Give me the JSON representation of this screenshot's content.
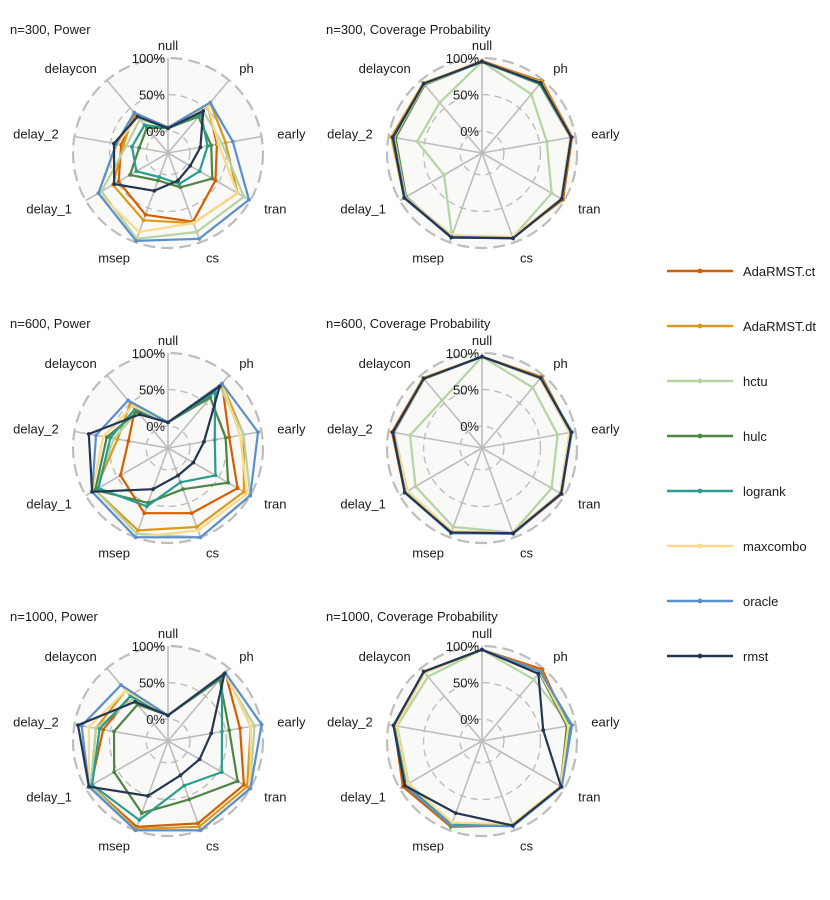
{
  "chart_data": [
    {
      "type": "radar",
      "title": "n=300, Power",
      "axes": [
        "null",
        "ph",
        "early",
        "tran",
        "cs",
        "msep",
        "delay_1",
        "delay_2",
        "delaycon"
      ],
      "ticks": [
        "100%",
        "50%",
        "0%"
      ],
      "rlim": [
        -0.3,
        1.0
      ],
      "series": [
        {
          "name": "AdaRMST.ct",
          "values": [
            0.04,
            0.55,
            0.38,
            0.45,
            0.7,
            0.6,
            0.48,
            0.35,
            0.4
          ]
        },
        {
          "name": "AdaRMST.dt",
          "values": [
            0.05,
            0.6,
            0.5,
            0.8,
            0.72,
            0.68,
            0.57,
            0.32,
            0.42
          ]
        },
        {
          "name": "hctu",
          "values": [
            0.05,
            0.45,
            0.45,
            0.9,
            0.85,
            0.95,
            0.75,
            0.28,
            0.3
          ]
        },
        {
          "name": "hulc",
          "values": [
            0.04,
            0.35,
            0.3,
            0.4,
            0.2,
            0.1,
            0.3,
            0.1,
            0.15
          ]
        },
        {
          "name": "logrank",
          "values": [
            0.04,
            0.4,
            0.25,
            0.2,
            0.15,
            0.05,
            0.2,
            0.2,
            0.2
          ]
        },
        {
          "name": "maxcombo",
          "values": [
            0.05,
            0.55,
            0.4,
            0.8,
            0.72,
            0.85,
            0.8,
            0.4,
            0.35
          ]
        },
        {
          "name": "oracle",
          "values": [
            0.05,
            0.6,
            0.6,
            0.98,
            0.95,
            0.98,
            0.8,
            0.42,
            0.42
          ]
        },
        {
          "name": "rmst",
          "values": [
            0.04,
            0.45,
            0.15,
            0.05,
            0.1,
            0.25,
            0.55,
            0.45,
            0.35
          ]
        }
      ]
    },
    {
      "type": "radar",
      "title": "n=300, Coverage Probability",
      "axes": [
        "null",
        "ph",
        "early",
        "tran",
        "cs",
        "msep",
        "delay_1",
        "delay_2",
        "delaycon"
      ],
      "ticks": [
        "100%",
        "50%",
        "0%"
      ],
      "rlim": [
        -0.3,
        1.0
      ],
      "series": [
        {
          "name": "AdaRMST.ct",
          "values": [
            0.96,
            0.98,
            0.95,
            0.98,
            0.93,
            0.9,
            0.92,
            0.95,
            0.94
          ]
        },
        {
          "name": "AdaRMST.dt",
          "values": [
            0.95,
            0.97,
            0.94,
            0.97,
            0.94,
            0.91,
            0.93,
            0.96,
            0.95
          ]
        },
        {
          "name": "hctu",
          "values": [
            0.95,
            0.75,
            0.6,
            0.8,
            0.93,
            0.9,
            0.3,
            0.6,
            0.6
          ]
        },
        {
          "name": "hulc",
          "values": [
            0.95,
            0.93,
            0.93,
            0.95,
            0.93,
            0.92,
            0.9,
            0.9,
            0.92
          ]
        },
        {
          "name": "logrank",
          "values": [
            0.95,
            0.94,
            0.94,
            0.96,
            0.94,
            0.93,
            0.92,
            0.93,
            0.93
          ]
        },
        {
          "name": "maxcombo",
          "values": [
            0.95,
            0.95,
            0.93,
            0.95,
            0.92,
            0.9,
            0.91,
            0.92,
            0.93
          ]
        },
        {
          "name": "oracle",
          "values": [
            0.95,
            0.95,
            0.94,
            0.96,
            0.94,
            0.92,
            0.92,
            0.93,
            0.94
          ]
        },
        {
          "name": "rmst",
          "values": [
            0.95,
            0.95,
            0.94,
            0.96,
            0.94,
            0.93,
            0.93,
            0.94,
            0.94
          ]
        }
      ]
    },
    {
      "type": "radar",
      "title": "n=600, Power",
      "axes": [
        "null",
        "ph",
        "early",
        "tran",
        "cs",
        "msep",
        "delay_1",
        "delay_2",
        "delaycon"
      ],
      "ticks": [
        "100%",
        "50%",
        "0%"
      ],
      "rlim": [
        -0.3,
        1.0
      ],
      "series": [
        {
          "name": "AdaRMST.ct",
          "values": [
            0.05,
            0.85,
            0.55,
            0.8,
            0.65,
            0.65,
            0.45,
            0.25,
            0.4
          ]
        },
        {
          "name": "AdaRMST.dt",
          "values": [
            0.05,
            0.85,
            0.75,
            0.9,
            0.85,
            0.9,
            0.85,
            0.4,
            0.5
          ]
        },
        {
          "name": "hctu",
          "values": [
            0.05,
            0.8,
            0.75,
            1.0,
            1.0,
            0.95,
            0.85,
            0.45,
            0.35
          ]
        },
        {
          "name": "hulc",
          "values": [
            0.05,
            0.6,
            0.5,
            0.65,
            0.3,
            0.5,
            0.85,
            0.55,
            0.35
          ]
        },
        {
          "name": "logrank",
          "values": [
            0.05,
            0.7,
            0.35,
            0.45,
            0.2,
            0.55,
            0.8,
            0.5,
            0.4
          ]
        },
        {
          "name": "maxcombo",
          "values": [
            0.05,
            0.85,
            0.7,
            0.95,
            0.9,
            1.0,
            0.9,
            0.6,
            0.45
          ]
        },
        {
          "name": "oracle",
          "values": [
            0.05,
            0.85,
            0.95,
            1.0,
            1.0,
            1.0,
            0.9,
            0.7,
            0.55
          ]
        },
        {
          "name": "rmst",
          "values": [
            0.05,
            0.8,
            0.2,
            0.1,
            0.1,
            0.3,
            0.9,
            0.8,
            0.3
          ]
        }
      ]
    },
    {
      "type": "radar",
      "title": "n=600, Coverage Probability",
      "axes": [
        "null",
        "ph",
        "early",
        "tran",
        "cs",
        "msep",
        "delay_1",
        "delay_2",
        "delaycon"
      ],
      "ticks": [
        "100%",
        "50%",
        "0%"
      ],
      "rlim": [
        -0.3,
        1.0
      ],
      "series": [
        {
          "name": "AdaRMST.ct",
          "values": [
            0.95,
            0.97,
            0.94,
            0.96,
            0.95,
            0.93,
            0.92,
            0.95,
            0.95
          ]
        },
        {
          "name": "AdaRMST.dt",
          "values": [
            0.95,
            0.96,
            0.93,
            0.95,
            0.94,
            0.92,
            0.9,
            0.94,
            0.95
          ]
        },
        {
          "name": "hctu",
          "values": [
            0.95,
            0.78,
            0.75,
            0.8,
            0.93,
            0.85,
            0.75,
            0.7,
            0.55
          ]
        },
        {
          "name": "hulc",
          "values": [
            0.95,
            0.94,
            0.92,
            0.94,
            0.93,
            0.92,
            0.88,
            0.92,
            0.93
          ]
        },
        {
          "name": "logrank",
          "values": [
            0.95,
            0.94,
            0.94,
            0.95,
            0.94,
            0.94,
            0.9,
            0.93,
            0.94
          ]
        },
        {
          "name": "maxcombo",
          "values": [
            0.95,
            0.94,
            0.92,
            0.94,
            0.93,
            0.91,
            0.88,
            0.92,
            0.93
          ]
        },
        {
          "name": "oracle",
          "values": [
            0.95,
            0.95,
            0.95,
            0.95,
            0.95,
            0.94,
            0.92,
            0.93,
            0.94
          ]
        },
        {
          "name": "rmst",
          "values": [
            0.95,
            0.95,
            0.94,
            0.95,
            0.94,
            0.93,
            0.92,
            0.94,
            0.94
          ]
        }
      ]
    },
    {
      "type": "radar",
      "title": "n=1000, Power",
      "axes": [
        "null",
        "ph",
        "early",
        "tran",
        "cs",
        "msep",
        "delay_1",
        "delay_2",
        "delaycon"
      ],
      "ticks": [
        "100%",
        "50%",
        "0%"
      ],
      "rlim": [
        -0.3,
        1.0
      ],
      "series": [
        {
          "name": "AdaRMST.ct",
          "values": [
            0.05,
            0.92,
            0.7,
            0.9,
            0.9,
            0.95,
            0.92,
            0.6,
            0.5
          ]
        },
        {
          "name": "AdaRMST.dt",
          "values": [
            0.05,
            0.92,
            0.85,
            0.95,
            0.95,
            0.98,
            0.92,
            0.7,
            0.6
          ]
        },
        {
          "name": "hctu",
          "values": [
            0.05,
            0.9,
            0.9,
            1.0,
            1.0,
            1.0,
            0.92,
            0.7,
            0.45
          ]
        },
        {
          "name": "hulc",
          "values": [
            0.05,
            0.8,
            0.55,
            0.8,
            0.55,
            0.75,
            0.55,
            0.45,
            0.35
          ]
        },
        {
          "name": "logrank",
          "values": [
            0.05,
            0.85,
            0.45,
            0.55,
            0.35,
            0.85,
            0.9,
            0.65,
            0.5
          ]
        },
        {
          "name": "maxcombo",
          "values": [
            0.05,
            0.92,
            0.85,
            1.0,
            1.0,
            1.0,
            0.95,
            0.8,
            0.6
          ]
        },
        {
          "name": "oracle",
          "values": [
            0.05,
            0.92,
            1.0,
            1.0,
            1.0,
            1.0,
            0.95,
            0.9,
            0.7
          ]
        },
        {
          "name": "rmst",
          "values": [
            0.05,
            0.9,
            0.3,
            0.2,
            0.2,
            0.5,
            0.95,
            0.95,
            0.4
          ]
        }
      ]
    },
    {
      "type": "radar",
      "title": "n=1000, Coverage Probability",
      "axes": [
        "null",
        "ph",
        "early",
        "tran",
        "cs",
        "msep",
        "delay_1",
        "delay_2",
        "delaycon"
      ],
      "ticks": [
        "100%",
        "50%",
        "0%"
      ],
      "rlim": [
        -0.3,
        1.0
      ],
      "series": [
        {
          "name": "AdaRMST.ct",
          "values": [
            0.95,
            0.98,
            0.9,
            0.95,
            0.93,
            0.95,
            0.95,
            0.92,
            0.94
          ]
        },
        {
          "name": "AdaRMST.dt",
          "values": [
            0.95,
            0.95,
            0.93,
            0.95,
            0.92,
            0.9,
            0.92,
            0.92,
            0.94
          ]
        },
        {
          "name": "hctu",
          "values": [
            0.95,
            0.8,
            0.93,
            0.96,
            0.92,
            0.9,
            0.86,
            0.88,
            0.85
          ]
        },
        {
          "name": "hulc",
          "values": [
            0.95,
            0.92,
            0.88,
            0.94,
            0.92,
            0.9,
            0.88,
            0.9,
            0.92
          ]
        },
        {
          "name": "logrank",
          "values": [
            0.95,
            0.94,
            0.93,
            0.95,
            0.93,
            0.92,
            0.9,
            0.91,
            0.93
          ]
        },
        {
          "name": "maxcombo",
          "values": [
            0.95,
            0.93,
            0.9,
            0.94,
            0.91,
            0.89,
            0.87,
            0.89,
            0.92
          ]
        },
        {
          "name": "oracle",
          "values": [
            0.95,
            0.94,
            0.95,
            0.96,
            0.94,
            0.93,
            0.92,
            0.93,
            0.94
          ]
        },
        {
          "name": "rmst",
          "values": [
            0.95,
            0.9,
            0.55,
            0.95,
            0.93,
            0.75,
            0.92,
            0.93,
            0.94
          ]
        }
      ]
    }
  ],
  "legend": {
    "items": [
      {
        "name": "AdaRMST.ct",
        "color": "#D55E00"
      },
      {
        "name": "AdaRMST.dt",
        "color": "#D99A1E"
      },
      {
        "name": "hctu",
        "color": "#B6D3A3"
      },
      {
        "name": "hulc",
        "color": "#4E8542"
      },
      {
        "name": "logrank",
        "color": "#2A9D8F"
      },
      {
        "name": "maxcombo",
        "color": "#F9D98B"
      },
      {
        "name": "oracle",
        "color": "#5B8FCB"
      },
      {
        "name": "rmst",
        "color": "#253652"
      }
    ]
  },
  "colors": {
    "grid": "#BDBDBD",
    "outer_ring": "#BDBDBD",
    "panel_bg": "#F9F9F7"
  }
}
